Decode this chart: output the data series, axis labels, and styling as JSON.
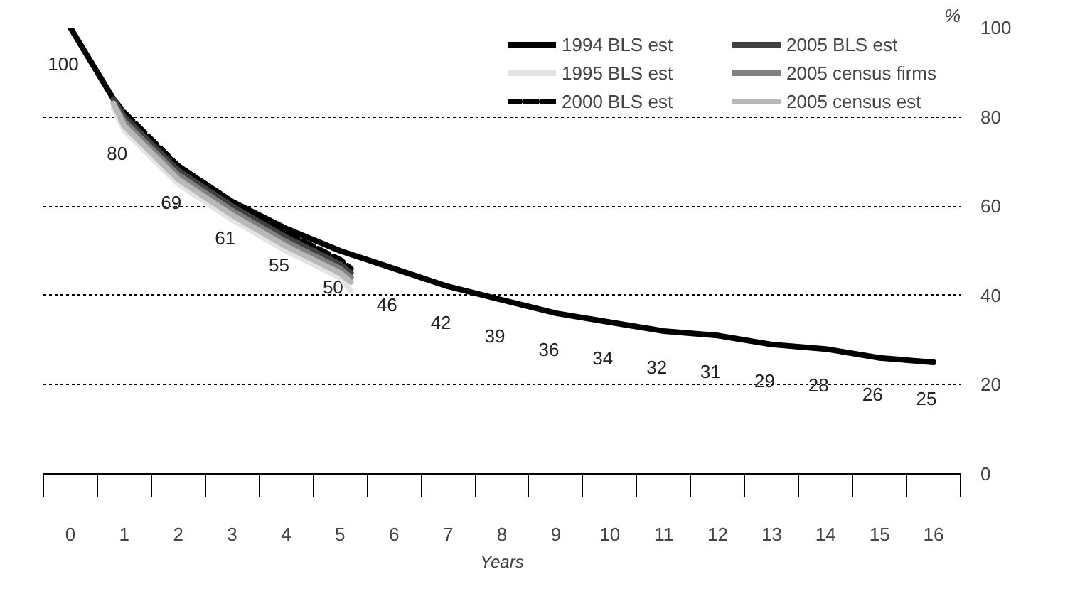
{
  "chart_data": {
    "type": "line",
    "xlabel": "Years",
    "ylabel": "%",
    "x": [
      0,
      1,
      2,
      3,
      4,
      5,
      6,
      7,
      8,
      9,
      10,
      11,
      12,
      13,
      14,
      15,
      16
    ],
    "series": [
      {
        "name": "1994 BLS est",
        "color": "#000000",
        "values": [
          100,
          80,
          69,
          61,
          55,
          50,
          46,
          42,
          39,
          36,
          34,
          32,
          31,
          29,
          28,
          26,
          25
        ],
        "value_labels": [
          "100",
          "80",
          "69",
          "61",
          "55",
          "50",
          "46",
          "42",
          "39",
          "36",
          "34",
          "32",
          "31",
          "29",
          "28",
          "26",
          "25"
        ]
      },
      {
        "name": "1995 BLS est",
        "color": "#e3e3e3",
        "x": [
          0.8,
          1,
          2,
          3,
          4,
          5,
          5.2
        ],
        "values": [
          82,
          77,
          65,
          57,
          50,
          44,
          41
        ]
      },
      {
        "name": "2000 BLS est",
        "color": "#000000",
        "line_style": "dashed",
        "x": [
          0.8,
          1,
          2,
          3,
          4,
          5,
          5.2
        ],
        "values": [
          84,
          81,
          69,
          61,
          54,
          48,
          46
        ]
      },
      {
        "name": "2005 BLS est",
        "color": "#404040",
        "x": [
          0.8,
          1,
          2,
          3,
          4,
          5,
          5.2
        ],
        "values": [
          84,
          80,
          68,
          60,
          53,
          47,
          45
        ]
      },
      {
        "name": "2005 census firms",
        "color": "#808080",
        "x": [
          0.8,
          1,
          2,
          3,
          4,
          5,
          5.2
        ],
        "values": [
          83,
          79,
          67,
          59,
          52,
          46,
          44
        ]
      },
      {
        "name": "2005 census est",
        "color": "#b8b8b8",
        "x": [
          0.8,
          1,
          2,
          3,
          4,
          5,
          5.2
        ],
        "values": [
          83,
          78,
          66,
          58,
          51,
          45,
          43
        ]
      }
    ],
    "xlim": [
      -0.5,
      16.5
    ],
    "xticks": [
      0,
      1,
      2,
      3,
      4,
      5,
      6,
      7,
      8,
      9,
      10,
      11,
      12,
      13,
      14,
      15,
      16
    ],
    "ylim": [
      0,
      100
    ],
    "yticks": [
      0,
      20,
      40,
      60,
      80,
      100
    ],
    "grid": "y",
    "legend": "top right",
    "line_style": "solid"
  }
}
